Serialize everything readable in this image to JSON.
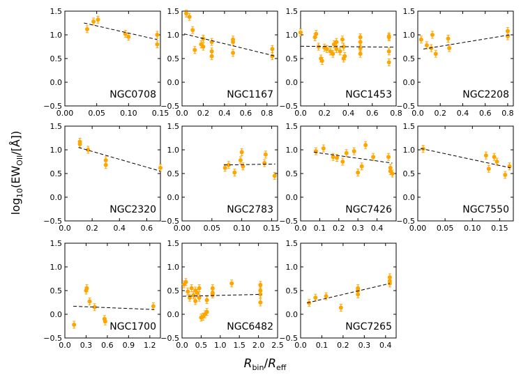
{
  "figure": {
    "ylabel_prefix": "log",
    "ylabel_sub": "10",
    "ylabel_open": "(EW",
    "ylabel_sub2": "OII",
    "ylabel_rest": "/[Å])",
    "xlabel_R": "R",
    "xlabel_sub1": "bin",
    "xlabel_slash": "/",
    "xlabel_R2": "R",
    "xlabel_sub2": "eff"
  },
  "colors": {
    "points": "#ffa500",
    "fit": "#000000",
    "axes": "#000000"
  },
  "chart_data": [
    {
      "type": "scatter",
      "label": "NGC0708",
      "xlim": [
        0,
        0.15
      ],
      "ylim": [
        -0.5,
        1.5
      ],
      "xticks": [
        "0.00",
        "0.05",
        "0.10",
        "0.15"
      ],
      "points": [
        [
          0.035,
          1.12
        ],
        [
          0.045,
          1.28
        ],
        [
          0.052,
          1.32
        ],
        [
          0.095,
          1.02
        ],
        [
          0.1,
          0.96
        ],
        [
          0.145,
          1.0
        ],
        [
          0.145,
          0.8
        ]
      ],
      "fit": [
        [
          0.03,
          1.25
        ],
        [
          0.145,
          0.9
        ]
      ]
    },
    {
      "type": "scatter",
      "label": "NGC1167",
      "xlim": [
        0,
        0.9
      ],
      "ylim": [
        -0.5,
        1.5
      ],
      "xticks": [
        "0.0",
        "0.2",
        "0.4",
        "0.6",
        "0.8"
      ],
      "points": [
        [
          0.04,
          1.45
        ],
        [
          0.07,
          1.38
        ],
        [
          0.1,
          1.1
        ],
        [
          0.12,
          0.68
        ],
        [
          0.18,
          0.8
        ],
        [
          0.2,
          0.75
        ],
        [
          0.2,
          0.92
        ],
        [
          0.28,
          0.85
        ],
        [
          0.28,
          0.65
        ],
        [
          0.28,
          0.55
        ],
        [
          0.48,
          0.85
        ],
        [
          0.48,
          0.9
        ],
        [
          0.48,
          0.62
        ],
        [
          0.85,
          0.7
        ],
        [
          0.85,
          0.55
        ]
      ],
      "fit": [
        [
          0.02,
          1.02
        ],
        [
          0.88,
          0.55
        ]
      ]
    },
    {
      "type": "scatter",
      "label": "NGC1453",
      "xlim": [
        0,
        0.8
      ],
      "ylim": [
        -0.5,
        1.5
      ],
      "xticks": [
        "0.0",
        "0.2",
        "0.4",
        "0.6",
        "0.8"
      ],
      "points": [
        [
          0.0,
          1.05
        ],
        [
          0.12,
          0.95
        ],
        [
          0.13,
          1.02
        ],
        [
          0.15,
          0.75
        ],
        [
          0.17,
          0.5
        ],
        [
          0.18,
          0.45
        ],
        [
          0.2,
          0.73
        ],
        [
          0.22,
          0.7
        ],
        [
          0.25,
          0.65
        ],
        [
          0.27,
          0.6
        ],
        [
          0.28,
          0.8
        ],
        [
          0.3,
          0.85
        ],
        [
          0.3,
          0.7
        ],
        [
          0.33,
          0.65
        ],
        [
          0.35,
          0.9
        ],
        [
          0.36,
          0.75
        ],
        [
          0.36,
          0.5
        ],
        [
          0.37,
          0.55
        ],
        [
          0.5,
          0.95
        ],
        [
          0.5,
          0.85
        ],
        [
          0.5,
          0.72
        ],
        [
          0.5,
          0.6
        ],
        [
          0.74,
          0.97
        ],
        [
          0.74,
          0.95
        ],
        [
          0.74,
          0.65
        ],
        [
          0.74,
          0.42
        ]
      ],
      "fit": [
        [
          0.0,
          0.76
        ],
        [
          0.78,
          0.74
        ]
      ]
    },
    {
      "type": "scatter",
      "label": "NGC2208",
      "xlim": [
        0,
        0.85
      ],
      "ylim": [
        -0.5,
        1.5
      ],
      "xticks": [
        "0.0",
        "0.2",
        "0.4",
        "0.6",
        "0.8"
      ],
      "points": [
        [
          0.03,
          0.9
        ],
        [
          0.08,
          0.78
        ],
        [
          0.12,
          0.72
        ],
        [
          0.13,
          1.0
        ],
        [
          0.16,
          0.6
        ],
        [
          0.27,
          0.92
        ],
        [
          0.28,
          0.72
        ],
        [
          0.8,
          1.08
        ],
        [
          0.8,
          0.97
        ]
      ],
      "fit": [
        [
          0.05,
          0.7
        ],
        [
          0.82,
          1.0
        ]
      ]
    },
    {
      "type": "scatter",
      "label": "NGC2320",
      "xlim": [
        0,
        0.7
      ],
      "ylim": [
        -0.5,
        1.5
      ],
      "xticks": [
        "0.0",
        "0.2",
        "0.4",
        "0.6"
      ],
      "points": [
        [
          0.11,
          1.17
        ],
        [
          0.11,
          1.12
        ],
        [
          0.17,
          1.0
        ],
        [
          0.3,
          0.78
        ],
        [
          0.3,
          0.68
        ],
        [
          0.7,
          0.62
        ]
      ],
      "fit": [
        [
          0.1,
          1.05
        ],
        [
          0.7,
          0.55
        ]
      ]
    },
    {
      "type": "scatter",
      "label": "NGC2783",
      "xlim": [
        0,
        0.16
      ],
      "ylim": [
        -0.5,
        1.5
      ],
      "xticks": [
        "0.00",
        "0.05",
        "0.10",
        "0.15"
      ],
      "points": [
        [
          0.072,
          0.62
        ],
        [
          0.078,
          0.68
        ],
        [
          0.088,
          0.52
        ],
        [
          0.098,
          0.78
        ],
        [
          0.1,
          0.95
        ],
        [
          0.102,
          0.65
        ],
        [
          0.138,
          0.72
        ],
        [
          0.14,
          0.9
        ],
        [
          0.155,
          0.45
        ]
      ],
      "fit": [
        [
          0.07,
          0.68
        ],
        [
          0.156,
          0.7
        ]
      ]
    },
    {
      "type": "scatter",
      "label": "NGC7426",
      "xlim": [
        0,
        0.5
      ],
      "ylim": [
        -0.5,
        1.5
      ],
      "xticks": [
        "0.0",
        "0.1",
        "0.2",
        "0.3",
        "0.4"
      ],
      "points": [
        [
          0.08,
          0.97
        ],
        [
          0.12,
          1.03
        ],
        [
          0.17,
          0.85
        ],
        [
          0.19,
          0.83
        ],
        [
          0.22,
          0.75
        ],
        [
          0.24,
          0.93
        ],
        [
          0.28,
          0.97
        ],
        [
          0.3,
          0.52
        ],
        [
          0.32,
          0.65
        ],
        [
          0.34,
          1.1
        ],
        [
          0.38,
          0.85
        ],
        [
          0.46,
          0.85
        ],
        [
          0.47,
          0.62
        ],
        [
          0.47,
          0.55
        ],
        [
          0.48,
          0.5
        ]
      ],
      "fit": [
        [
          0.07,
          0.95
        ],
        [
          0.48,
          0.72
        ]
      ]
    },
    {
      "type": "scatter",
      "label": "NGC7550",
      "xlim": [
        0,
        0.175
      ],
      "ylim": [
        -0.5,
        1.5
      ],
      "xticks": [
        "0.00",
        "0.05",
        "0.10",
        "0.15"
      ],
      "points": [
        [
          0.01,
          1.02
        ],
        [
          0.125,
          0.88
        ],
        [
          0.13,
          0.6
        ],
        [
          0.14,
          0.85
        ],
        [
          0.145,
          0.75
        ],
        [
          0.16,
          0.47
        ],
        [
          0.168,
          0.65
        ]
      ],
      "fit": [
        [
          0.005,
          1.03
        ],
        [
          0.17,
          0.62
        ]
      ]
    },
    {
      "type": "scatter",
      "label": "NGC1700",
      "xlim": [
        0,
        1.35
      ],
      "ylim": [
        -0.5,
        1.5
      ],
      "xticks": [
        "0.0",
        "0.3",
        "0.6",
        "0.9",
        "1.2"
      ],
      "points": [
        [
          0.13,
          -0.22
        ],
        [
          0.3,
          0.5
        ],
        [
          0.31,
          0.55
        ],
        [
          0.35,
          0.27
        ],
        [
          0.42,
          0.15
        ],
        [
          0.56,
          -0.1
        ],
        [
          0.57,
          -0.15
        ],
        [
          1.25,
          0.17
        ]
      ],
      "fit": [
        [
          0.12,
          0.17
        ],
        [
          1.26,
          0.1
        ]
      ]
    },
    {
      "type": "scatter",
      "label": "NGC6482",
      "xlim": [
        0,
        2.5
      ],
      "ylim": [
        -0.5,
        1.5
      ],
      "xticks": [
        "0.0",
        "0.5",
        "1.0",
        "1.5",
        "2.0",
        "2.5"
      ],
      "points": [
        [
          0.05,
          0.63
        ],
        [
          0.1,
          0.68
        ],
        [
          0.15,
          0.48
        ],
        [
          0.2,
          0.35
        ],
        [
          0.25,
          0.55
        ],
        [
          0.3,
          0.4
        ],
        [
          0.35,
          0.28
        ],
        [
          0.35,
          0.5
        ],
        [
          0.4,
          0.45
        ],
        [
          0.45,
          0.55
        ],
        [
          0.45,
          0.35
        ],
        [
          0.5,
          -0.07
        ],
        [
          0.55,
          -0.05
        ],
        [
          0.6,
          0.0
        ],
        [
          0.65,
          0.05
        ],
        [
          0.65,
          0.3
        ],
        [
          0.8,
          0.55
        ],
        [
          0.8,
          0.45
        ],
        [
          0.8,
          0.42
        ],
        [
          1.3,
          0.65
        ],
        [
          2.05,
          0.62
        ],
        [
          2.05,
          0.5
        ],
        [
          2.05,
          0.42
        ],
        [
          2.05,
          0.25
        ]
      ],
      "fit": [
        [
          0.02,
          0.38
        ],
        [
          2.07,
          0.42
        ]
      ]
    },
    {
      "type": "scatter",
      "label": "NGC7265",
      "xlim": [
        0,
        0.45
      ],
      "ylim": [
        -0.5,
        1.5
      ],
      "xticks": [
        "0.0",
        "0.1",
        "0.2",
        "0.3",
        "0.4"
      ],
      "points": [
        [
          0.04,
          0.24
        ],
        [
          0.07,
          0.35
        ],
        [
          0.12,
          0.38
        ],
        [
          0.19,
          0.14
        ],
        [
          0.27,
          0.5
        ],
        [
          0.27,
          0.42
        ],
        [
          0.27,
          0.55
        ],
        [
          0.42,
          0.78
        ],
        [
          0.42,
          0.65
        ],
        [
          0.42,
          0.7
        ]
      ],
      "fit": [
        [
          0.03,
          0.24
        ],
        [
          0.42,
          0.65
        ]
      ]
    }
  ],
  "yticks": [
    "−0.5",
    "0.0",
    "0.5",
    "1.0",
    "1.5"
  ]
}
